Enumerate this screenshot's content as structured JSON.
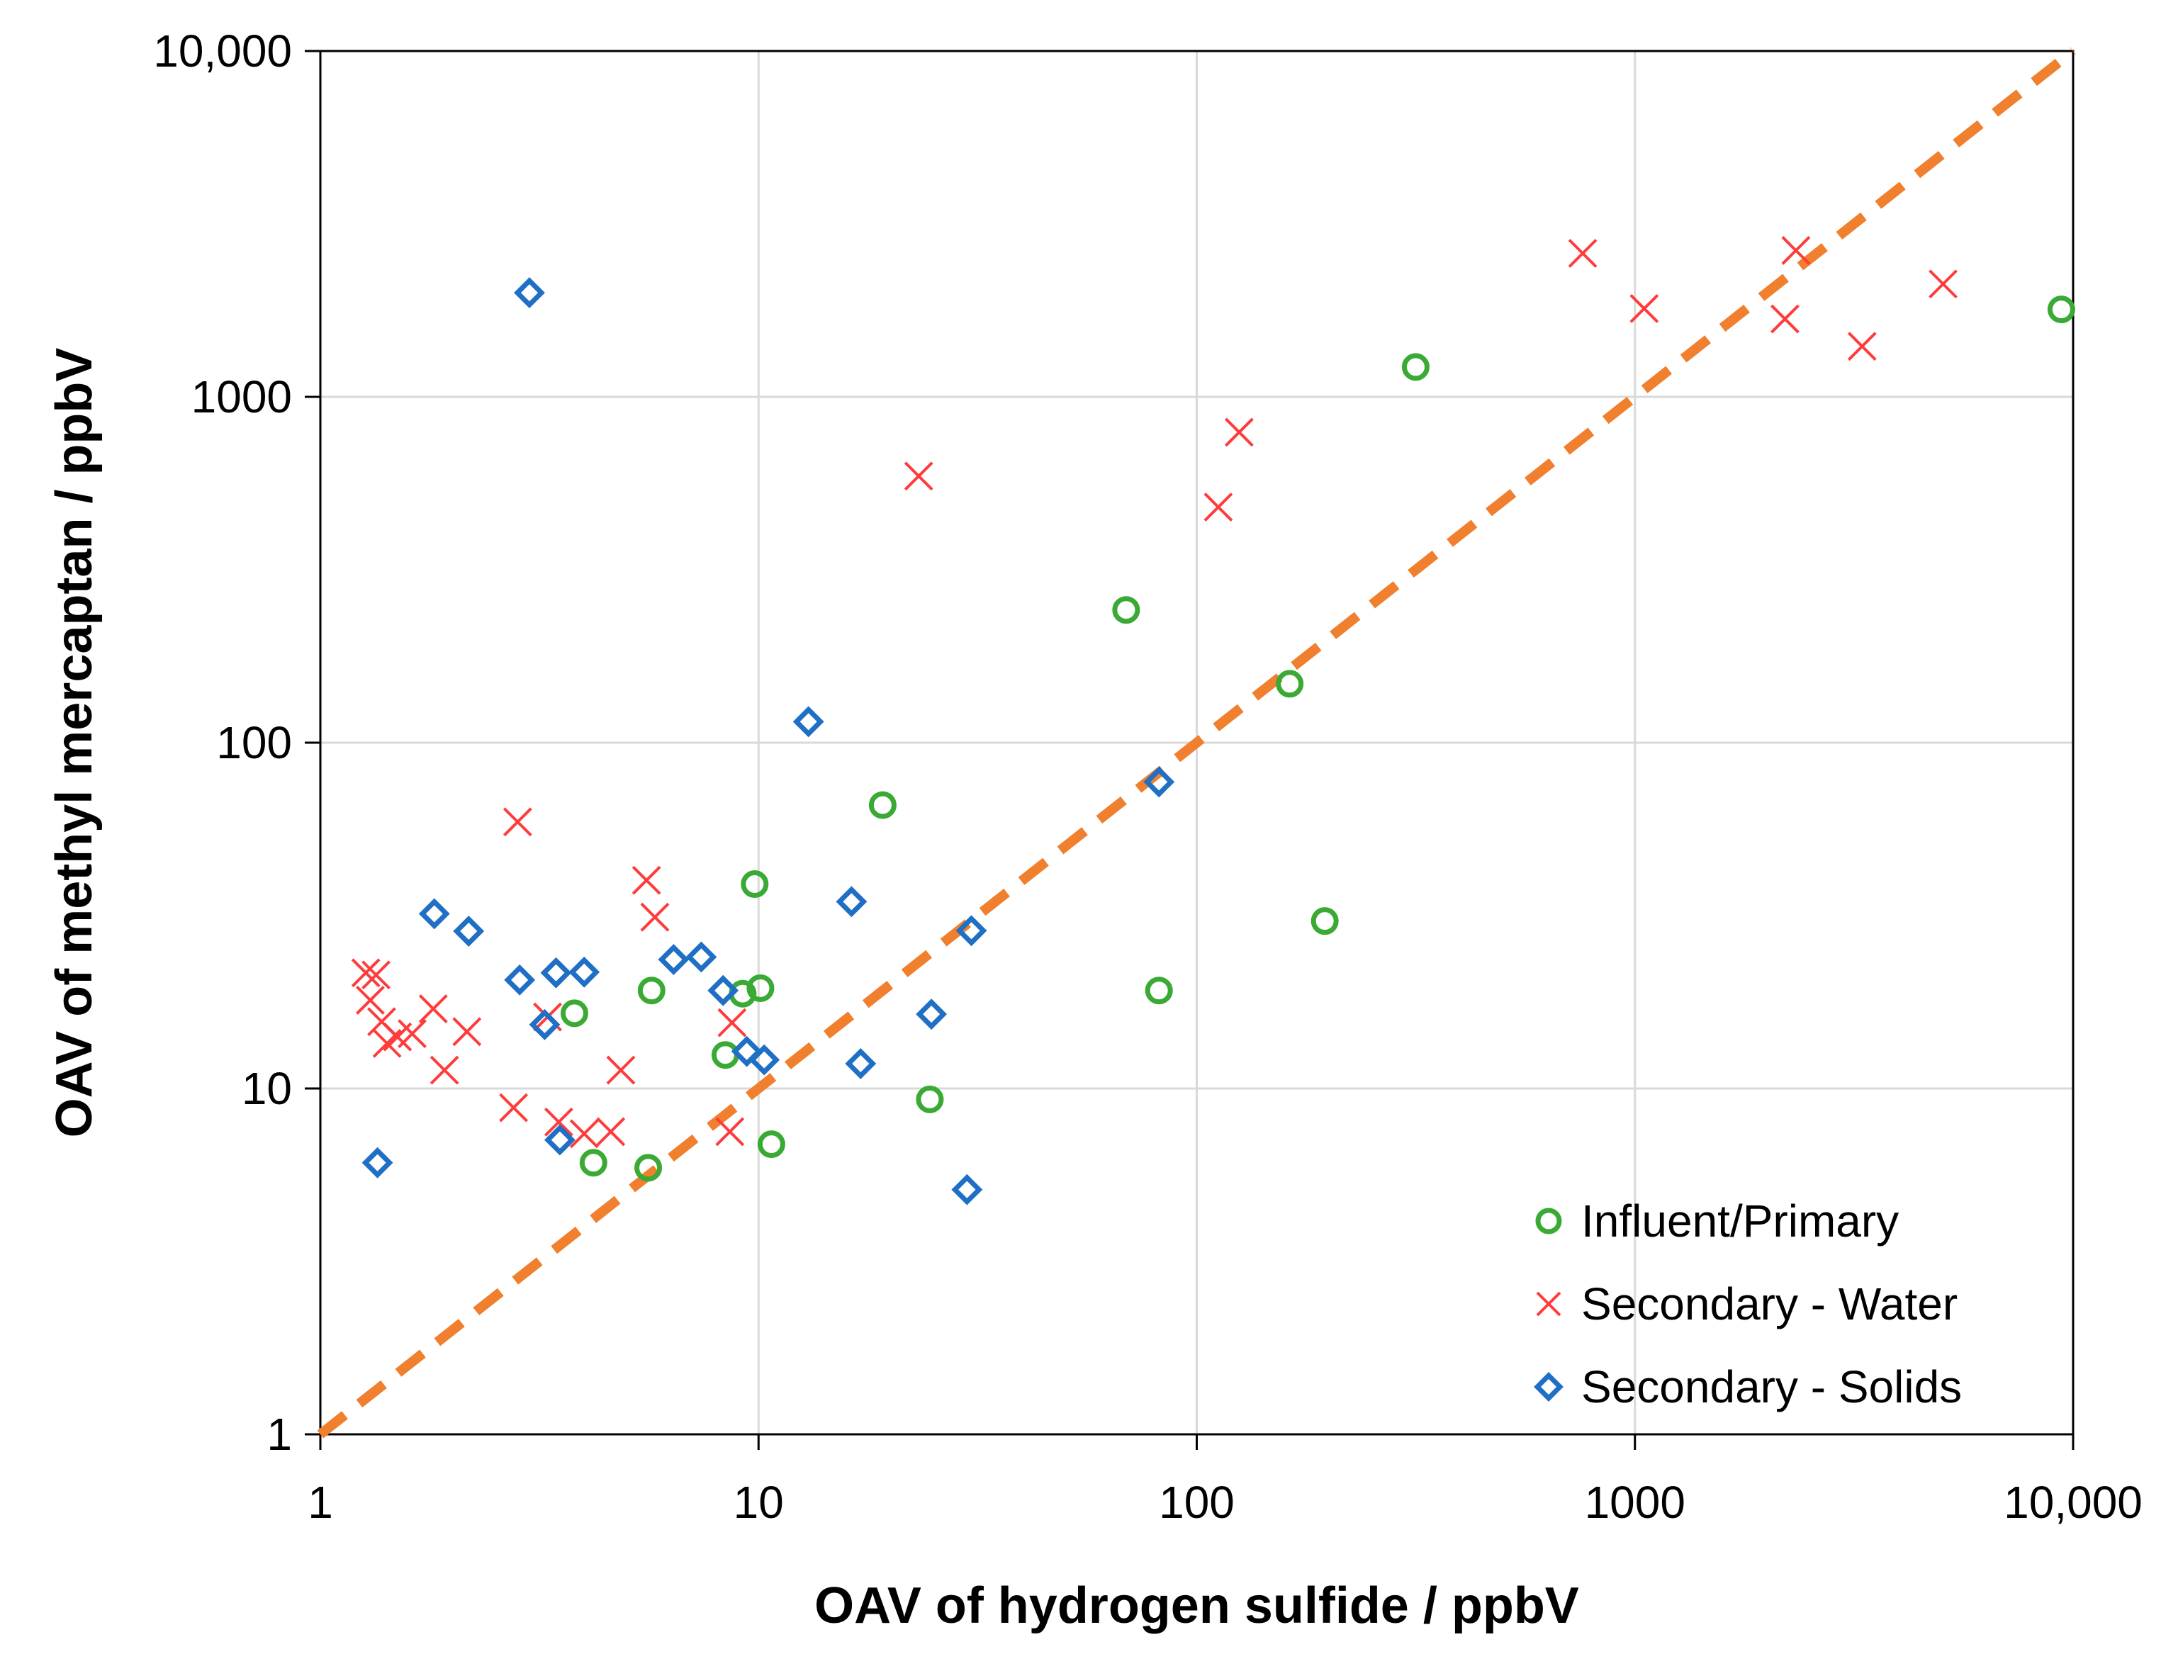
{
  "chart_data": {
    "type": "scatter",
    "title": "",
    "xlabel": "OAV of hydrogen sulfide / ppbV",
    "ylabel": "OAV of methyl mercaptan / ppbV",
    "xscale": "log",
    "yscale": "log",
    "xlim": [
      1,
      10000
    ],
    "ylim": [
      1,
      10000
    ],
    "grid": true,
    "x_ticks": [
      1,
      10,
      100,
      1000,
      10000
    ],
    "x_tick_labels": [
      "1",
      "10",
      "100",
      "1000",
      "10,000"
    ],
    "y_ticks": [
      1,
      10,
      100,
      1000,
      10000
    ],
    "y_tick_labels": [
      "1",
      "10",
      "100",
      "1000",
      "10,000"
    ],
    "legend_position": "bottom-right",
    "reference_line": {
      "name": "1:1 line",
      "style": "dashed",
      "color": "#f07f2e",
      "x": [
        1,
        10000
      ],
      "y": [
        1,
        10000
      ]
    },
    "series": [
      {
        "name": "Influent/Primary",
        "marker": "circle",
        "color": "#3aaa35",
        "points": [
          [
            3.8,
            16.5
          ],
          [
            4.2,
            6.1
          ],
          [
            5.6,
            5.9
          ],
          [
            5.7,
            19.2
          ],
          [
            8.4,
            12.5
          ],
          [
            9.2,
            18.8
          ],
          [
            9.8,
            39
          ],
          [
            10.1,
            19.5
          ],
          [
            10.7,
            6.9
          ],
          [
            19.2,
            66
          ],
          [
            24.6,
            9.3
          ],
          [
            69,
            242
          ],
          [
            82,
            19.2
          ],
          [
            163,
            148
          ],
          [
            196,
            30.5
          ],
          [
            316,
            1220
          ],
          [
            9400,
            1790
          ]
        ]
      },
      {
        "name": "Secondary - Water",
        "marker": "x",
        "color": "#ff3b3b",
        "points": [
          [
            1.27,
            21.6
          ],
          [
            1.3,
            18.0
          ],
          [
            1.34,
            21.3
          ],
          [
            1.38,
            15.6
          ],
          [
            1.42,
            13.5
          ],
          [
            1.5,
            14.1
          ],
          [
            1.62,
            14.4
          ],
          [
            1.81,
            17.0
          ],
          [
            1.92,
            11.3
          ],
          [
            2.16,
            14.6
          ],
          [
            2.76,
            8.8
          ],
          [
            2.82,
            59
          ],
          [
            3.3,
            16.1
          ],
          [
            3.5,
            8.0
          ],
          [
            4.0,
            7.4
          ],
          [
            4.6,
            7.5
          ],
          [
            4.85,
            11.3
          ],
          [
            5.55,
            40
          ],
          [
            5.8,
            31.3
          ],
          [
            8.6,
            7.5
          ],
          [
            8.7,
            15.5
          ],
          [
            23.2,
            590
          ],
          [
            112,
            480
          ],
          [
            125,
            790
          ],
          [
            760,
            2600
          ],
          [
            1050,
            1800
          ],
          [
            2200,
            1680
          ],
          [
            2330,
            2650
          ],
          [
            3300,
            1400
          ],
          [
            5050,
            2120
          ]
        ]
      },
      {
        "name": "Secondary - Solids",
        "marker": "diamond",
        "color": "#1f6fc5",
        "points": [
          [
            1.35,
            6.1
          ],
          [
            1.82,
            32
          ],
          [
            2.18,
            28.5
          ],
          [
            2.85,
            20.6
          ],
          [
            3.0,
            2000
          ],
          [
            3.25,
            15.3
          ],
          [
            3.45,
            21.6
          ],
          [
            3.52,
            7.1
          ],
          [
            4.0,
            21.7
          ],
          [
            6.4,
            23.6
          ],
          [
            7.4,
            24.0
          ],
          [
            8.3,
            19.2
          ],
          [
            9.4,
            12.8
          ],
          [
            10.3,
            12.1
          ],
          [
            13.0,
            115
          ],
          [
            16.3,
            34.7
          ],
          [
            17.1,
            11.8
          ],
          [
            24.8,
            16.4
          ],
          [
            29.9,
            5.1
          ],
          [
            30.6,
            28.6
          ],
          [
            82,
            77
          ]
        ]
      }
    ]
  }
}
